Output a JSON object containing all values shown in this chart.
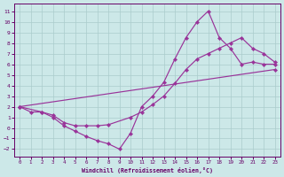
{
  "bg_color": "#cce8e8",
  "line_color": "#993399",
  "ylim": [
    -2.7,
    11.7
  ],
  "xlim": [
    -0.5,
    23.5
  ],
  "yticks": [
    -2,
    -1,
    0,
    1,
    2,
    3,
    4,
    5,
    6,
    7,
    8,
    9,
    10,
    11
  ],
  "xticks": [
    0,
    1,
    2,
    3,
    4,
    5,
    6,
    7,
    8,
    9,
    10,
    11,
    12,
    13,
    14,
    15,
    16,
    17,
    18,
    19,
    20,
    21,
    22,
    23
  ],
  "xlabel": "Windchill (Refroidissement éolien,°C)",
  "grid_color": "#aacccc",
  "tick_color": "#660066",
  "line1_x": [
    0,
    1,
    2,
    3,
    4,
    5,
    6,
    7,
    8,
    9,
    10,
    11,
    12,
    13,
    14,
    15,
    16,
    17,
    18,
    19,
    20,
    21,
    22,
    23
  ],
  "line1_y": [
    2.0,
    1.5,
    1.5,
    1.0,
    0.2,
    -0.3,
    -0.8,
    -1.2,
    -1.5,
    -2.0,
    -0.5,
    2.0,
    3.0,
    4.3,
    6.5,
    8.5,
    10.0,
    11.0,
    8.5,
    7.5,
    6.0,
    6.2,
    6.0,
    6.0
  ],
  "line2_x": [
    0,
    2,
    3,
    4,
    5,
    6,
    7,
    8,
    10,
    11,
    12,
    13,
    14,
    15,
    16,
    17,
    18,
    19,
    20,
    21,
    22,
    23
  ],
  "line2_y": [
    2.0,
    1.5,
    1.2,
    0.5,
    0.2,
    0.2,
    0.2,
    0.3,
    1.0,
    1.5,
    2.2,
    3.0,
    4.2,
    5.5,
    6.5,
    7.0,
    7.5,
    8.0,
    8.5,
    7.5,
    7.0,
    6.2
  ],
  "line3_x": [
    0,
    23
  ],
  "line3_y": [
    2.0,
    5.5
  ]
}
